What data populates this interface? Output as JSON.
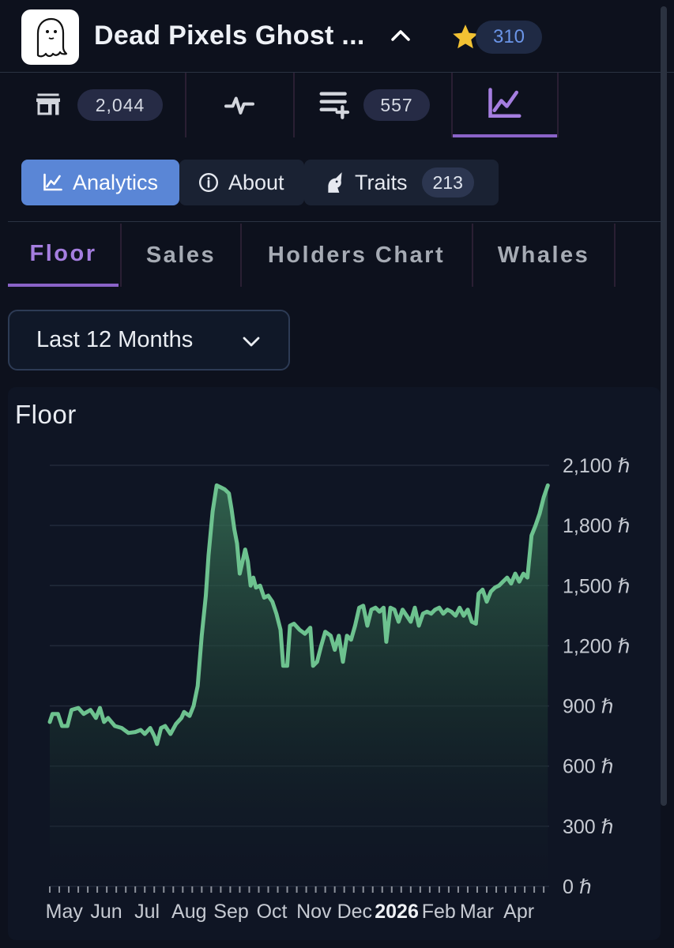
{
  "header": {
    "title": "Dead Pixels Ghost ...",
    "favorite_count": "310",
    "colors": {
      "background": "#0d111d",
      "accent_purple": "#8a63c8",
      "accent_blue": "#5a86d6",
      "star": "#f2c233"
    }
  },
  "stats_tabs": [
    {
      "icon": "storefront-icon",
      "count": "2,044"
    },
    {
      "icon": "activity-pulse-icon",
      "count": ""
    },
    {
      "icon": "playlist-add-icon",
      "count": "557"
    },
    {
      "icon": "line-chart-icon",
      "count": "",
      "active": true
    }
  ],
  "segments": {
    "analytics": "Analytics",
    "about": "About",
    "traits": "Traits",
    "traits_count": "213",
    "selected": "analytics"
  },
  "sub_tabs": [
    {
      "label": "Floor",
      "active": true
    },
    {
      "label": "Sales"
    },
    {
      "label": "Holders Chart"
    },
    {
      "label": "Whales"
    }
  ],
  "range_select": {
    "value": "Last 12 Months"
  },
  "chart_data": {
    "type": "area",
    "title": "Floor",
    "line_color": "#6dc28f",
    "ylim": [
      0,
      2100
    ],
    "y_ticks": [
      {
        "value": 0,
        "label": "0 ℏ"
      },
      {
        "value": 300,
        "label": "300 ℏ"
      },
      {
        "value": 600,
        "label": "600 ℏ"
      },
      {
        "value": 900,
        "label": "900 ℏ"
      },
      {
        "value": 1200,
        "label": "1,200 ℏ"
      },
      {
        "value": 1500,
        "label": "1,500 ℏ"
      },
      {
        "value": 1800,
        "label": "1,800 ℏ"
      },
      {
        "value": 2100,
        "label": "2,100 ℏ"
      }
    ],
    "x_start": "2025-04-25",
    "x_end": "2026-04-28",
    "x_ticks": [
      {
        "date": "2025-05-01",
        "label": "May"
      },
      {
        "date": "2025-06-01",
        "label": "Jun"
      },
      {
        "date": "2025-07-01",
        "label": "Jul"
      },
      {
        "date": "2025-08-01",
        "label": "Aug"
      },
      {
        "date": "2025-09-01",
        "label": "Sep"
      },
      {
        "date": "2025-10-01",
        "label": "Oct"
      },
      {
        "date": "2025-11-01",
        "label": "Nov"
      },
      {
        "date": "2025-12-01",
        "label": "Dec"
      },
      {
        "date": "2026-01-01",
        "label": "2026",
        "bold": true
      },
      {
        "date": "2026-02-01",
        "label": "Feb"
      },
      {
        "date": "2026-03-01",
        "label": "Mar"
      },
      {
        "date": "2026-04-01",
        "label": "Apr"
      }
    ],
    "grid": true,
    "points": [
      [
        "2025-04-25",
        820
      ],
      [
        "2025-04-27",
        860
      ],
      [
        "2025-05-01",
        860
      ],
      [
        "2025-05-04",
        800
      ],
      [
        "2025-05-08",
        800
      ],
      [
        "2025-05-11",
        880
      ],
      [
        "2025-05-16",
        890
      ],
      [
        "2025-05-20",
        860
      ],
      [
        "2025-05-25",
        880
      ],
      [
        "2025-05-29",
        840
      ],
      [
        "2025-06-01",
        890
      ],
      [
        "2025-06-04",
        820
      ],
      [
        "2025-06-07",
        840
      ],
      [
        "2025-06-12",
        800
      ],
      [
        "2025-06-17",
        790
      ],
      [
        "2025-06-22",
        765
      ],
      [
        "2025-06-27",
        770
      ],
      [
        "2025-07-01",
        780
      ],
      [
        "2025-07-04",
        760
      ],
      [
        "2025-07-08",
        790
      ],
      [
        "2025-07-11",
        750
      ],
      [
        "2025-07-13",
        710
      ],
      [
        "2025-07-16",
        790
      ],
      [
        "2025-07-19",
        800
      ],
      [
        "2025-07-23",
        760
      ],
      [
        "2025-07-27",
        810
      ],
      [
        "2025-07-31",
        840
      ],
      [
        "2025-08-02",
        870
      ],
      [
        "2025-08-06",
        850
      ],
      [
        "2025-08-09",
        900
      ],
      [
        "2025-08-12",
        1000
      ],
      [
        "2025-08-15",
        1250
      ],
      [
        "2025-08-18",
        1450
      ],
      [
        "2025-08-20",
        1650
      ],
      [
        "2025-08-23",
        1870
      ],
      [
        "2025-08-26",
        2000
      ],
      [
        "2025-08-29",
        1990
      ],
      [
        "2025-09-01",
        1980
      ],
      [
        "2025-09-04",
        1960
      ],
      [
        "2025-09-06",
        1880
      ],
      [
        "2025-09-08",
        1780
      ],
      [
        "2025-09-10",
        1710
      ],
      [
        "2025-09-12",
        1560
      ],
      [
        "2025-09-14",
        1620
      ],
      [
        "2025-09-16",
        1680
      ],
      [
        "2025-09-18",
        1620
      ],
      [
        "2025-09-20",
        1500
      ],
      [
        "2025-09-22",
        1540
      ],
      [
        "2025-09-24",
        1490
      ],
      [
        "2025-09-27",
        1500
      ],
      [
        "2025-09-30",
        1440
      ],
      [
        "2025-10-03",
        1450
      ],
      [
        "2025-10-06",
        1420
      ],
      [
        "2025-10-09",
        1360
      ],
      [
        "2025-10-12",
        1280
      ],
      [
        "2025-10-14",
        1100
      ],
      [
        "2025-10-17",
        1100
      ],
      [
        "2025-10-19",
        1300
      ],
      [
        "2025-10-22",
        1310
      ],
      [
        "2025-10-26",
        1280
      ],
      [
        "2025-10-30",
        1260
      ],
      [
        "2025-11-03",
        1290
      ],
      [
        "2025-11-05",
        1100
      ],
      [
        "2025-11-08",
        1120
      ],
      [
        "2025-11-11",
        1200
      ],
      [
        "2025-11-14",
        1270
      ],
      [
        "2025-11-18",
        1250
      ],
      [
        "2025-11-21",
        1180
      ],
      [
        "2025-11-24",
        1250
      ],
      [
        "2025-11-27",
        1120
      ],
      [
        "2025-11-30",
        1250
      ],
      [
        "2025-12-03",
        1230
      ],
      [
        "2025-12-06",
        1300
      ],
      [
        "2025-12-09",
        1390
      ],
      [
        "2025-12-12",
        1400
      ],
      [
        "2025-12-15",
        1300
      ],
      [
        "2025-12-18",
        1380
      ],
      [
        "2025-12-21",
        1390
      ],
      [
        "2025-12-24",
        1370
      ],
      [
        "2025-12-27",
        1390
      ],
      [
        "2025-12-29",
        1220
      ],
      [
        "2026-01-01",
        1390
      ],
      [
        "2026-01-04",
        1380
      ],
      [
        "2026-01-07",
        1320
      ],
      [
        "2026-01-10",
        1380
      ],
      [
        "2026-01-13",
        1350
      ],
      [
        "2026-01-16",
        1320
      ],
      [
        "2026-01-19",
        1390
      ],
      [
        "2026-01-22",
        1300
      ],
      [
        "2026-01-25",
        1360
      ],
      [
        "2026-01-28",
        1370
      ],
      [
        "2026-01-31",
        1360
      ],
      [
        "2026-02-03",
        1380
      ],
      [
        "2026-02-06",
        1390
      ],
      [
        "2026-02-09",
        1360
      ],
      [
        "2026-02-12",
        1380
      ],
      [
        "2026-02-15",
        1370
      ],
      [
        "2026-02-18",
        1350
      ],
      [
        "2026-02-21",
        1390
      ],
      [
        "2026-02-24",
        1350
      ],
      [
        "2026-02-27",
        1380
      ],
      [
        "2026-03-02",
        1320
      ],
      [
        "2026-03-05",
        1310
      ],
      [
        "2026-03-07",
        1460
      ],
      [
        "2026-03-10",
        1480
      ],
      [
        "2026-03-13",
        1420
      ],
      [
        "2026-03-16",
        1470
      ],
      [
        "2026-03-19",
        1490
      ],
      [
        "2026-03-22",
        1500
      ],
      [
        "2026-03-25",
        1520
      ],
      [
        "2026-03-28",
        1540
      ],
      [
        "2026-03-31",
        1510
      ],
      [
        "2026-04-03",
        1560
      ],
      [
        "2026-04-06",
        1520
      ],
      [
        "2026-04-09",
        1560
      ],
      [
        "2026-04-12",
        1540
      ],
      [
        "2026-04-15",
        1750
      ],
      [
        "2026-04-18",
        1800
      ],
      [
        "2026-04-21",
        1860
      ],
      [
        "2026-04-24",
        1940
      ],
      [
        "2026-04-27",
        2000
      ]
    ]
  }
}
